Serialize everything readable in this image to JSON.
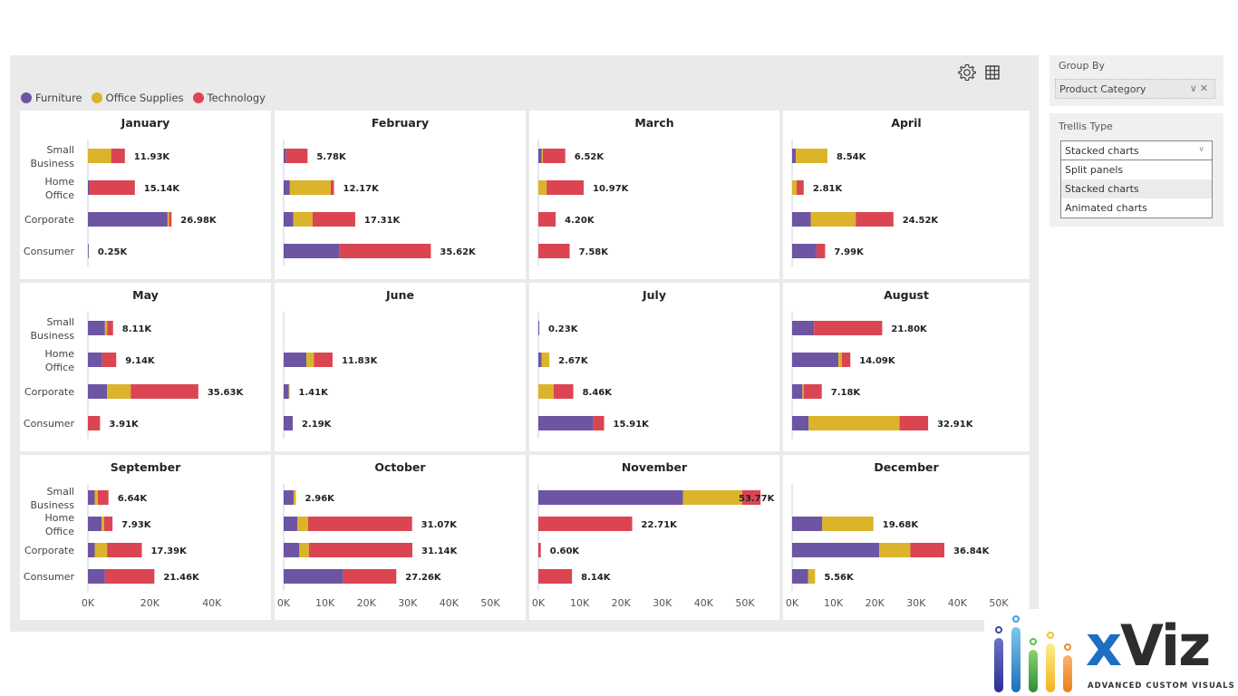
{
  "toolbar": {
    "settings_icon": "gear-icon",
    "table_icon": "grid-table-icon"
  },
  "legend": [
    {
      "name": "Furniture",
      "color": "#6d55a4"
    },
    {
      "name": "Office Supplies",
      "color": "#dbb42b"
    },
    {
      "name": "Technology",
      "color": "#db4552"
    }
  ],
  "side_panel": {
    "group_by": {
      "label": "Group By",
      "value": "Product Category"
    },
    "trellis_type": {
      "label": "Trellis Type",
      "selected": "Stacked charts",
      "options": [
        "Split panels",
        "Stacked charts",
        "Animated charts"
      ]
    }
  },
  "logo": {
    "name": "xViz",
    "x": "x",
    "viz": "Viz",
    "tagline": "ADVANCED CUSTOM VISUALS"
  },
  "chart_data": {
    "type": "bar",
    "orientation": "horizontal",
    "stacked": true,
    "trellis_by": "Month",
    "categories": [
      "Small Business",
      "Home Office",
      "Corporate",
      "Consumer"
    ],
    "category_labels": [
      [
        "Small",
        "Business"
      ],
      [
        "Home",
        "Office"
      ],
      [
        "Corporate"
      ],
      [
        "Consumer"
      ]
    ],
    "series_names": [
      "Furniture",
      "Office Supplies",
      "Technology"
    ],
    "xlim": [
      0,
      55
    ],
    "x_unit": "K",
    "xticks_col1": [
      "0K",
      "20K",
      "40K"
    ],
    "xticks": [
      "0K",
      "10K",
      "20K",
      "30K",
      "40K",
      "50K"
    ],
    "legend_position": "top-left",
    "panels": [
      {
        "title": "January",
        "totals": [
          "11.93K",
          "15.14K",
          "26.98K",
          "0.25K"
        ],
        "values": [
          [
            0,
            7.5,
            4.43
          ],
          [
            0.6,
            0,
            14.54
          ],
          [
            25.7,
            0.5,
            0.78
          ],
          [
            0.25,
            0,
            0
          ]
        ]
      },
      {
        "title": "February",
        "totals": [
          "5.78K",
          "12.17K",
          "17.31K",
          "35.62K"
        ],
        "values": [
          [
            0.6,
            0,
            5.18
          ],
          [
            1.5,
            9.9,
            0.77
          ],
          [
            2.3,
            4.7,
            10.31
          ],
          [
            13.4,
            0,
            22.22
          ]
        ]
      },
      {
        "title": "March",
        "totals": [
          "6.52K",
          "10.97K",
          "4.20K",
          "7.58K"
        ],
        "values": [
          [
            0.8,
            0.3,
            5.42
          ],
          [
            0,
            2.0,
            8.97
          ],
          [
            0,
            0,
            4.2
          ],
          [
            0,
            0,
            7.58
          ]
        ]
      },
      {
        "title": "April",
        "totals": [
          "8.54K",
          "2.81K",
          "24.52K",
          "7.99K"
        ],
        "values": [
          [
            0.9,
            7.64,
            0
          ],
          [
            0,
            1.1,
            1.71
          ],
          [
            4.5,
            10.9,
            9.12
          ],
          [
            5.9,
            0,
            2.09
          ]
        ]
      },
      {
        "title": "May",
        "totals": [
          "8.11K",
          "9.14K",
          "35.63K",
          "3.91K"
        ],
        "values": [
          [
            5.5,
            0.7,
            1.91
          ],
          [
            4.6,
            0,
            4.54
          ],
          [
            6.2,
            7.6,
            21.83
          ],
          [
            0,
            0,
            3.91
          ]
        ]
      },
      {
        "title": "June",
        "totals": [
          "",
          "11.83K",
          "1.41K",
          "2.19K"
        ],
        "values": [
          [
            0,
            0,
            0
          ],
          [
            5.5,
            1.8,
            4.53
          ],
          [
            1.2,
            0.21,
            0
          ],
          [
            2.19,
            0,
            0
          ]
        ]
      },
      {
        "title": "July",
        "totals": [
          "0.23K",
          "2.67K",
          "8.46K",
          "15.91K"
        ],
        "values": [
          [
            0.23,
            0,
            0
          ],
          [
            0.8,
            1.87,
            0
          ],
          [
            0,
            3.7,
            4.76
          ],
          [
            13.3,
            0,
            2.61
          ]
        ]
      },
      {
        "title": "August",
        "totals": [
          "21.80K",
          "14.09K",
          "7.18K",
          "32.91K"
        ],
        "values": [
          [
            5.3,
            0,
            16.5
          ],
          [
            11.2,
            0.8,
            2.09
          ],
          [
            2.5,
            0.3,
            4.38
          ],
          [
            4.0,
            22.0,
            6.91
          ]
        ]
      },
      {
        "title": "September",
        "totals": [
          "6.64K",
          "7.93K",
          "17.39K",
          "21.46K"
        ],
        "values": [
          [
            2.2,
            1.0,
            3.44
          ],
          [
            4.4,
            0.8,
            2.73
          ],
          [
            2.2,
            4.0,
            11.19
          ],
          [
            5.5,
            0,
            15.96
          ]
        ]
      },
      {
        "title": "October",
        "totals": [
          "2.96K",
          "31.07K",
          "31.14K",
          "27.26K"
        ],
        "values": [
          [
            2.4,
            0.56,
            0
          ],
          [
            3.3,
            2.6,
            25.17
          ],
          [
            3.8,
            2.3,
            25.04
          ],
          [
            14.4,
            0,
            12.86
          ]
        ]
      },
      {
        "title": "November",
        "totals": [
          "53.77K",
          "22.71K",
          "0.60K",
          "8.14K"
        ],
        "values": [
          [
            35.0,
            14.3,
            4.47
          ],
          [
            0,
            0,
            22.71
          ],
          [
            0,
            0,
            0.6
          ],
          [
            0,
            0,
            8.14
          ]
        ]
      },
      {
        "title": "December",
        "totals": [
          "",
          "19.68K",
          "36.84K",
          "5.56K"
        ],
        "values": [
          [
            0,
            0,
            0
          ],
          [
            7.3,
            12.38,
            0
          ],
          [
            21.1,
            7.5,
            8.24
          ],
          [
            3.9,
            1.66,
            0
          ]
        ]
      }
    ]
  }
}
